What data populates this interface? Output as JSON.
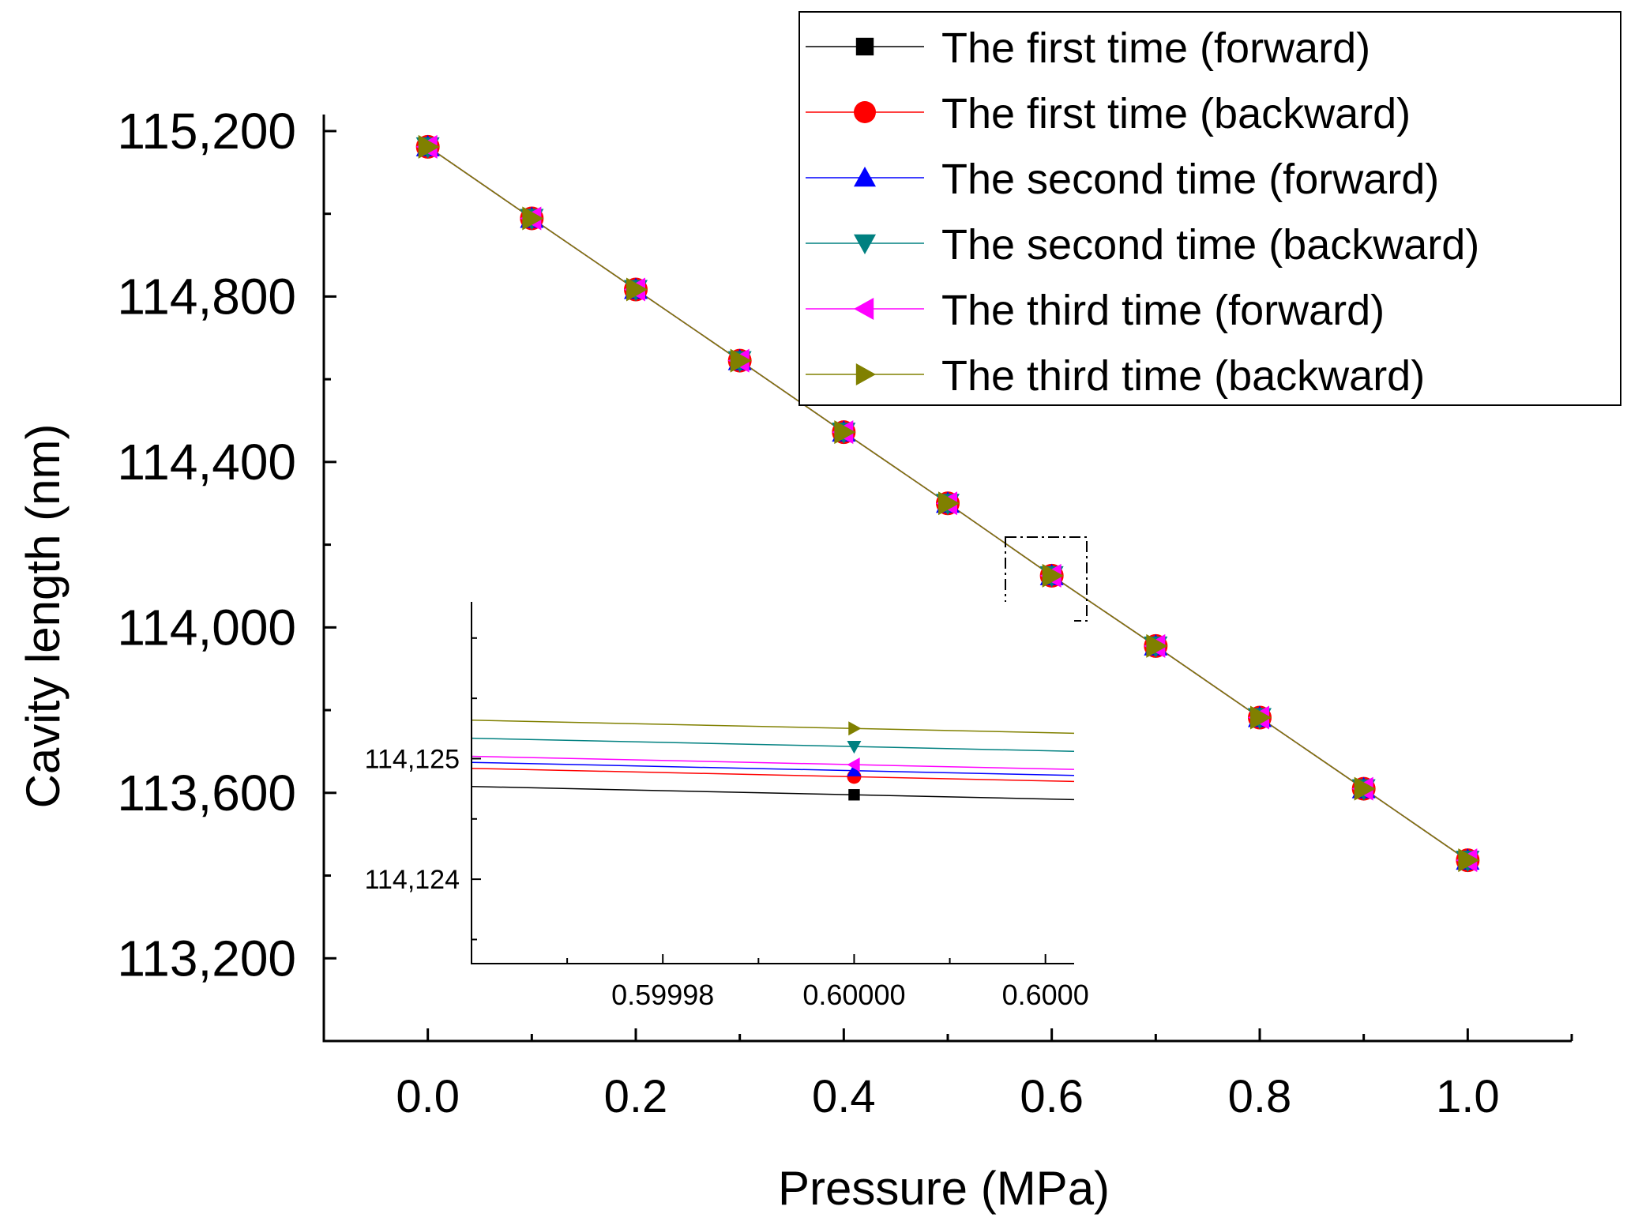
{
  "chart_data": [
    {
      "type": "line",
      "xlabel": "Pressure (MPa)",
      "ylabel": "Cavity length (nm)",
      "xlim": [
        -0.1,
        1.1
      ],
      "ylim": [
        113000,
        115240
      ],
      "xticks": [
        0.0,
        0.2,
        0.4,
        0.6,
        0.8,
        1.0
      ],
      "xtick_labels": [
        "0.0",
        "0.2",
        "0.4",
        "0.6",
        "0.8",
        "1.0"
      ],
      "yticks": [
        113200,
        113600,
        114000,
        114400,
        114800,
        115200
      ],
      "ytick_labels": [
        "113,200",
        "113,600",
        "114,000",
        "114,400",
        "114,800",
        "115,200"
      ],
      "x": [
        0.0,
        0.1,
        0.2,
        0.3,
        0.4,
        0.5,
        0.6,
        0.7,
        0.8,
        0.9,
        1.0
      ],
      "series": [
        {
          "name": "The first time (forward)",
          "color": "#000000",
          "marker": "square",
          "values": [
            115162,
            114989,
            114817,
            114645,
            114472,
            114300,
            114125,
            113955,
            113782,
            113610,
            113437
          ]
        },
        {
          "name": "The first time (backward)",
          "color": "#ff0000",
          "marker": "circle",
          "values": [
            115162,
            114989,
            114817,
            114645,
            114472,
            114300,
            114125,
            113955,
            113782,
            113610,
            113437
          ]
        },
        {
          "name": "The second time (forward)",
          "color": "#0000ff",
          "marker": "triangle-up",
          "values": [
            115162,
            114989,
            114817,
            114645,
            114472,
            114300,
            114125,
            113955,
            113782,
            113610,
            113437
          ]
        },
        {
          "name": "The second time (backward)",
          "color": "#008080",
          "marker": "triangle-down",
          "values": [
            115162,
            114989,
            114817,
            114645,
            114472,
            114300,
            114125,
            113955,
            113782,
            113610,
            113437
          ]
        },
        {
          "name": "The third time (forward)",
          "color": "#ff00ff",
          "marker": "triangle-left",
          "values": [
            115162,
            114989,
            114817,
            114645,
            114472,
            114300,
            114125,
            113955,
            113782,
            113610,
            113437
          ]
        },
        {
          "name": "The third time (backward)",
          "color": "#808000",
          "marker": "triangle-right",
          "values": [
            115162,
            114989,
            114817,
            114645,
            114472,
            114300,
            114125,
            113955,
            113782,
            113610,
            113437
          ]
        }
      ],
      "legend_position": "top-right"
    },
    {
      "type": "line",
      "role": "inset zoom around x = 0.6",
      "xlim": [
        0.59996,
        0.600023
      ],
      "ylim": [
        114123.3,
        114126.3
      ],
      "xticks": [
        0.59998,
        0.6,
        0.60002
      ],
      "xtick_labels": [
        "0.59998",
        "0.60000",
        "0.6000"
      ],
      "yticks": [
        114124,
        114125
      ],
      "ytick_labels": [
        "114,124",
        "114,125"
      ],
      "slope_nm_per_MPa": -1726,
      "points_x": 0.6,
      "series_values_at_x": [
        114124.7,
        114124.85,
        114124.9,
        114125.1,
        114124.95,
        114125.25
      ]
    }
  ]
}
